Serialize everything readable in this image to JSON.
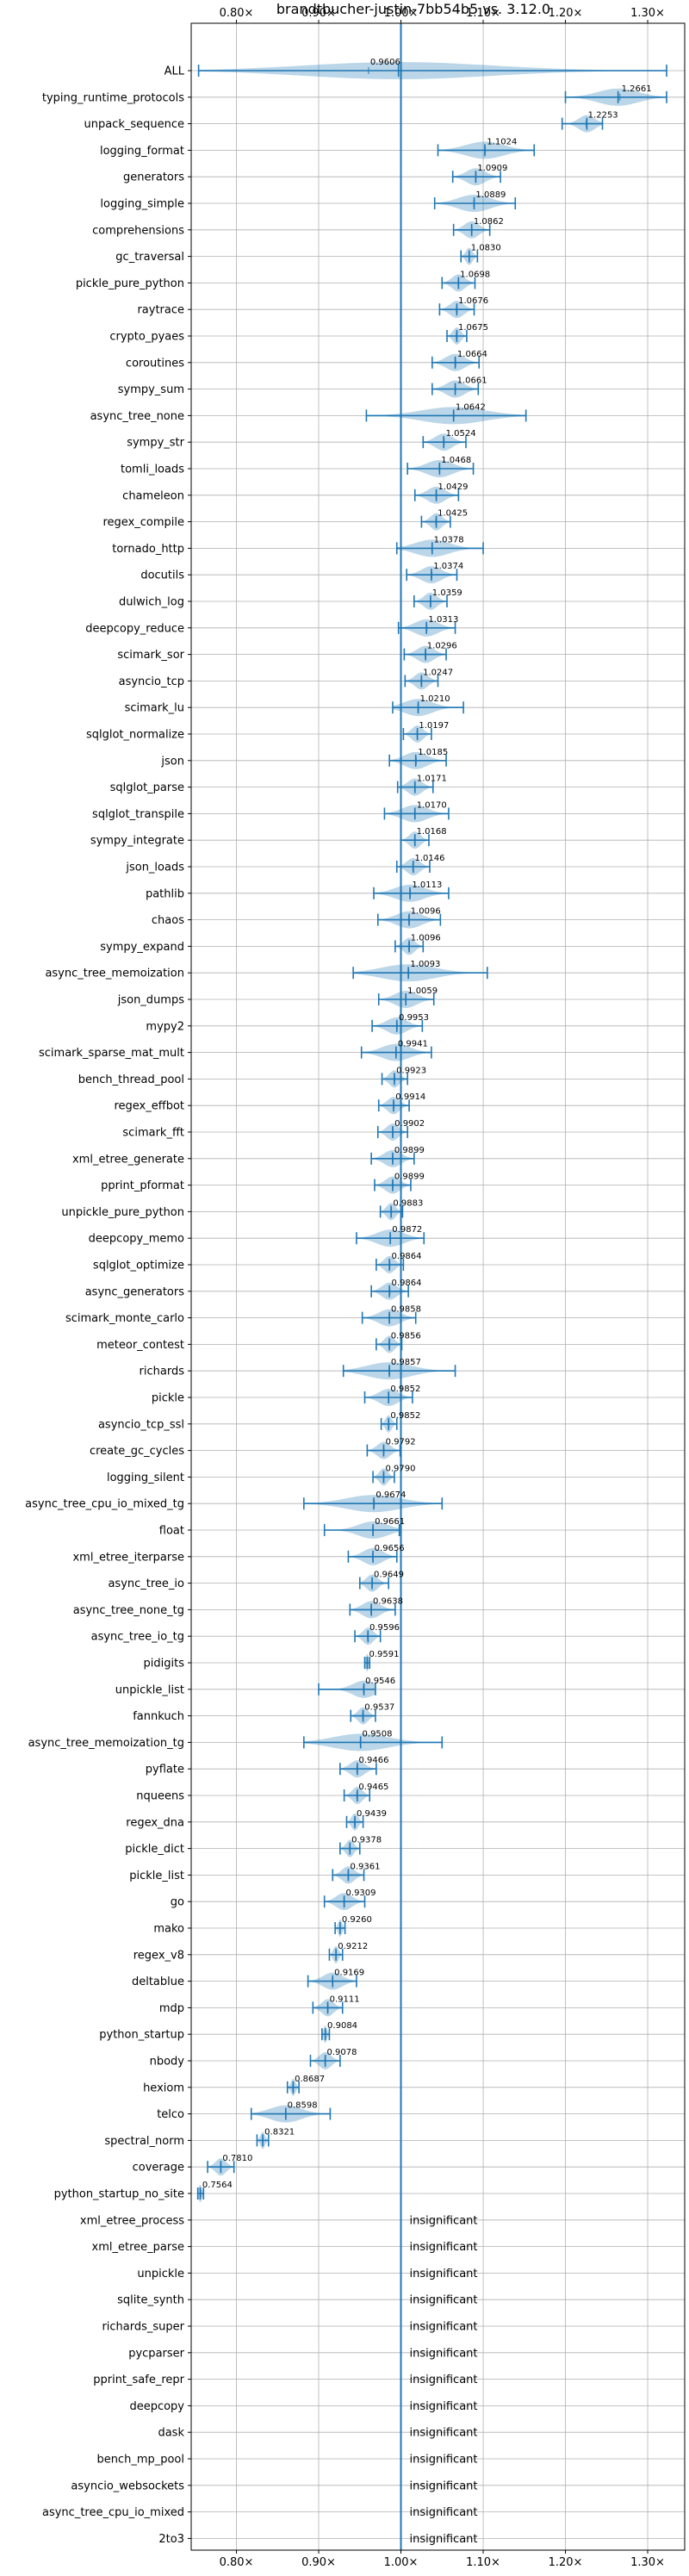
{
  "chart_data": {
    "type": "violin",
    "title": "brandtbucher-justin-7bb54b5 vs. 3.12.0",
    "xlim": [
      0.745,
      1.345
    ],
    "x_ticks": [
      0.8,
      0.9,
      1.0,
      1.1,
      1.2,
      1.3
    ],
    "x_tick_labels": [
      "0.80×",
      "0.90×",
      "1.00×",
      "1.10×",
      "1.20×",
      "1.30×"
    ],
    "x_axis_ticks_top_and_bottom": true,
    "grid": true,
    "reference_line": 1.0,
    "insignificant_label": "insignificant",
    "benchmarks": [
      {
        "name": "ALL",
        "value": "0.9606",
        "mean": 0.9606,
        "median": 0.997,
        "min": 0.754,
        "max": 1.323
      },
      {
        "name": "typing_runtime_protocols",
        "value": "1.2661",
        "mean": 1.2661,
        "median": 1.264,
        "min": 1.2,
        "max": 1.323
      },
      {
        "name": "unpack_sequence",
        "value": "1.2253",
        "mean": 1.2253,
        "median": 1.226,
        "min": 1.196,
        "max": 1.245
      },
      {
        "name": "logging_format",
        "value": "1.1024",
        "mean": 1.1024,
        "median": 1.102,
        "min": 1.045,
        "max": 1.162
      },
      {
        "name": "generators",
        "value": "1.0909",
        "mean": 1.0909,
        "median": 1.091,
        "min": 1.063,
        "max": 1.121
      },
      {
        "name": "logging_simple",
        "value": "1.0889",
        "mean": 1.0889,
        "median": 1.089,
        "min": 1.041,
        "max": 1.139
      },
      {
        "name": "comprehensions",
        "value": "1.0862",
        "mean": 1.0862,
        "median": 1.086,
        "min": 1.064,
        "max": 1.108
      },
      {
        "name": "gc_traversal",
        "value": "1.0830",
        "mean": 1.083,
        "median": 1.083,
        "min": 1.073,
        "max": 1.093
      },
      {
        "name": "pickle_pure_python",
        "value": "1.0698",
        "mean": 1.0698,
        "median": 1.07,
        "min": 1.05,
        "max": 1.09
      },
      {
        "name": "raytrace",
        "value": "1.0676",
        "mean": 1.0676,
        "median": 1.068,
        "min": 1.047,
        "max": 1.089
      },
      {
        "name": "crypto_pyaes",
        "value": "1.0675",
        "mean": 1.0675,
        "median": 1.068,
        "min": 1.056,
        "max": 1.08
      },
      {
        "name": "coroutines",
        "value": "1.0664",
        "mean": 1.0664,
        "median": 1.066,
        "min": 1.038,
        "max": 1.095
      },
      {
        "name": "sympy_sum",
        "value": "1.0661",
        "mean": 1.0661,
        "median": 1.066,
        "min": 1.038,
        "max": 1.094
      },
      {
        "name": "async_tree_none",
        "value": "1.0642",
        "mean": 1.0642,
        "median": 1.064,
        "min": 0.958,
        "max": 1.152
      },
      {
        "name": "sympy_str",
        "value": "1.0524",
        "mean": 1.0524,
        "median": 1.052,
        "min": 1.027,
        "max": 1.079
      },
      {
        "name": "tomli_loads",
        "value": "1.0468",
        "mean": 1.0468,
        "median": 1.047,
        "min": 1.008,
        "max": 1.088
      },
      {
        "name": "chameleon",
        "value": "1.0429",
        "mean": 1.0429,
        "median": 1.043,
        "min": 1.017,
        "max": 1.07
      },
      {
        "name": "regex_compile",
        "value": "1.0425",
        "mean": 1.0425,
        "median": 1.043,
        "min": 1.025,
        "max": 1.06
      },
      {
        "name": "tornado_http",
        "value": "1.0378",
        "mean": 1.0378,
        "median": 1.038,
        "min": 0.995,
        "max": 1.1
      },
      {
        "name": "docutils",
        "value": "1.0374",
        "mean": 1.0374,
        "median": 1.037,
        "min": 1.007,
        "max": 1.068
      },
      {
        "name": "dulwich_log",
        "value": "1.0359",
        "mean": 1.0359,
        "median": 1.036,
        "min": 1.016,
        "max": 1.056
      },
      {
        "name": "deepcopy_reduce",
        "value": "1.0313",
        "mean": 1.0313,
        "median": 1.031,
        "min": 0.997,
        "max": 1.066
      },
      {
        "name": "scimark_sor",
        "value": "1.0296",
        "mean": 1.0296,
        "median": 1.03,
        "min": 1.004,
        "max": 1.055
      },
      {
        "name": "asyncio_tcp",
        "value": "1.0247",
        "mean": 1.0247,
        "median": 1.025,
        "min": 1.005,
        "max": 1.045
      },
      {
        "name": "scimark_lu",
        "value": "1.0210",
        "mean": 1.021,
        "median": 1.021,
        "min": 0.99,
        "max": 1.076
      },
      {
        "name": "sqlglot_normalize",
        "value": "1.0197",
        "mean": 1.0197,
        "median": 1.02,
        "min": 1.003,
        "max": 1.037
      },
      {
        "name": "json",
        "value": "1.0185",
        "mean": 1.0185,
        "median": 1.018,
        "min": 0.986,
        "max": 1.055
      },
      {
        "name": "sqlglot_parse",
        "value": "1.0171",
        "mean": 1.0171,
        "median": 1.017,
        "min": 0.996,
        "max": 1.039
      },
      {
        "name": "sqlglot_transpile",
        "value": "1.0170",
        "mean": 1.017,
        "median": 1.017,
        "min": 0.98,
        "max": 1.058
      },
      {
        "name": "sympy_integrate",
        "value": "1.0168",
        "mean": 1.0168,
        "median": 1.017,
        "min": 1.0,
        "max": 1.034
      },
      {
        "name": "json_loads",
        "value": "1.0146",
        "mean": 1.0146,
        "median": 1.015,
        "min": 0.995,
        "max": 1.035
      },
      {
        "name": "pathlib",
        "value": "1.0113",
        "mean": 1.0113,
        "median": 1.011,
        "min": 0.967,
        "max": 1.058
      },
      {
        "name": "chaos",
        "value": "1.0096",
        "mean": 1.0096,
        "median": 1.01,
        "min": 0.972,
        "max": 1.048
      },
      {
        "name": "sympy_expand",
        "value": "1.0096",
        "mean": 1.0096,
        "median": 1.01,
        "min": 0.993,
        "max": 1.027
      },
      {
        "name": "async_tree_memoization",
        "value": "1.0093",
        "mean": 1.0093,
        "median": 1.009,
        "min": 0.942,
        "max": 1.105
      },
      {
        "name": "json_dumps",
        "value": "1.0059",
        "mean": 1.0059,
        "median": 1.006,
        "min": 0.973,
        "max": 1.04
      },
      {
        "name": "mypy2",
        "value": "0.9953",
        "mean": 0.9953,
        "median": 0.995,
        "min": 0.965,
        "max": 1.026
      },
      {
        "name": "scimark_sparse_mat_mult",
        "value": "0.9941",
        "mean": 0.9941,
        "median": 0.994,
        "min": 0.952,
        "max": 1.037
      },
      {
        "name": "bench_thread_pool",
        "value": "0.9923",
        "mean": 0.9923,
        "median": 0.992,
        "min": 0.977,
        "max": 1.008
      },
      {
        "name": "regex_effbot",
        "value": "0.9914",
        "mean": 0.9914,
        "median": 0.991,
        "min": 0.973,
        "max": 1.01
      },
      {
        "name": "scimark_fft",
        "value": "0.9902",
        "mean": 0.9902,
        "median": 0.99,
        "min": 0.972,
        "max": 1.008
      },
      {
        "name": "xml_etree_generate",
        "value": "0.9899",
        "mean": 0.9899,
        "median": 0.99,
        "min": 0.964,
        "max": 1.016
      },
      {
        "name": "pprint_pformat",
        "value": "0.9899",
        "mean": 0.9899,
        "median": 0.99,
        "min": 0.968,
        "max": 1.012
      },
      {
        "name": "unpickle_pure_python",
        "value": "0.9883",
        "mean": 0.9883,
        "median": 0.988,
        "min": 0.975,
        "max": 1.002
      },
      {
        "name": "deepcopy_memo",
        "value": "0.9872",
        "mean": 0.9872,
        "median": 0.987,
        "min": 0.946,
        "max": 1.028
      },
      {
        "name": "sqlglot_optimize",
        "value": "0.9864",
        "mean": 0.9864,
        "median": 0.986,
        "min": 0.97,
        "max": 1.003
      },
      {
        "name": "async_generators",
        "value": "0.9864",
        "mean": 0.9864,
        "median": 0.986,
        "min": 0.964,
        "max": 1.009
      },
      {
        "name": "scimark_monte_carlo",
        "value": "0.9858",
        "mean": 0.9858,
        "median": 0.986,
        "min": 0.953,
        "max": 1.018
      },
      {
        "name": "meteor_contest",
        "value": "0.9856",
        "mean": 0.9856,
        "median": 0.986,
        "min": 0.97,
        "max": 1.001
      },
      {
        "name": "richards",
        "value": "0.9857",
        "mean": 0.9857,
        "median": 0.986,
        "min": 0.93,
        "max": 1.066
      },
      {
        "name": "pickle",
        "value": "0.9852",
        "mean": 0.9852,
        "median": 0.985,
        "min": 0.956,
        "max": 1.014
      },
      {
        "name": "asyncio_tcp_ssl",
        "value": "0.9852",
        "mean": 0.9852,
        "median": 0.985,
        "min": 0.976,
        "max": 0.995
      },
      {
        "name": "create_gc_cycles",
        "value": "0.9792",
        "mean": 0.9792,
        "median": 0.979,
        "min": 0.959,
        "max": 0.999
      },
      {
        "name": "logging_silent",
        "value": "0.9790",
        "mean": 0.979,
        "median": 0.979,
        "min": 0.966,
        "max": 0.992
      },
      {
        "name": "async_tree_cpu_io_mixed_tg",
        "value": "0.9674",
        "mean": 0.9674,
        "median": 0.967,
        "min": 0.882,
        "max": 1.05
      },
      {
        "name": "float",
        "value": "0.9661",
        "mean": 0.9661,
        "median": 0.966,
        "min": 0.907,
        "max": 0.998
      },
      {
        "name": "xml_etree_iterparse",
        "value": "0.9656",
        "mean": 0.9656,
        "median": 0.966,
        "min": 0.936,
        "max": 0.995
      },
      {
        "name": "async_tree_io",
        "value": "0.9649",
        "mean": 0.9649,
        "median": 0.965,
        "min": 0.95,
        "max": 0.985
      },
      {
        "name": "async_tree_none_tg",
        "value": "0.9638",
        "mean": 0.9638,
        "median": 0.964,
        "min": 0.938,
        "max": 0.993
      },
      {
        "name": "async_tree_io_tg",
        "value": "0.9596",
        "mean": 0.9596,
        "median": 0.96,
        "min": 0.944,
        "max": 0.975
      },
      {
        "name": "pidigits",
        "value": "0.9591",
        "mean": 0.9591,
        "median": 0.959,
        "min": 0.956,
        "max": 0.962
      },
      {
        "name": "unpickle_list",
        "value": "0.9546",
        "mean": 0.9546,
        "median": 0.955,
        "min": 0.9,
        "max": 0.969
      },
      {
        "name": "fannkuch",
        "value": "0.9537",
        "mean": 0.9537,
        "median": 0.954,
        "min": 0.939,
        "max": 0.969
      },
      {
        "name": "async_tree_memoization_tg",
        "value": "0.9508",
        "mean": 0.9508,
        "median": 0.951,
        "min": 0.882,
        "max": 1.05
      },
      {
        "name": "pyflate",
        "value": "0.9466",
        "mean": 0.9466,
        "median": 0.947,
        "min": 0.926,
        "max": 0.97
      },
      {
        "name": "nqueens",
        "value": "0.9465",
        "mean": 0.9465,
        "median": 0.947,
        "min": 0.931,
        "max": 0.962
      },
      {
        "name": "regex_dna",
        "value": "0.9439",
        "mean": 0.9439,
        "median": 0.944,
        "min": 0.934,
        "max": 0.954
      },
      {
        "name": "pickle_dict",
        "value": "0.9378",
        "mean": 0.9378,
        "median": 0.938,
        "min": 0.926,
        "max": 0.95
      },
      {
        "name": "pickle_list",
        "value": "0.9361",
        "mean": 0.9361,
        "median": 0.936,
        "min": 0.917,
        "max": 0.955
      },
      {
        "name": "go",
        "value": "0.9309",
        "mean": 0.9309,
        "median": 0.931,
        "min": 0.907,
        "max": 0.956
      },
      {
        "name": "mako",
        "value": "0.9260",
        "mean": 0.926,
        "median": 0.926,
        "min": 0.92,
        "max": 0.932
      },
      {
        "name": "regex_v8",
        "value": "0.9212",
        "mean": 0.9212,
        "median": 0.921,
        "min": 0.913,
        "max": 0.929
      },
      {
        "name": "deltablue",
        "value": "0.9169",
        "mean": 0.9169,
        "median": 0.917,
        "min": 0.887,
        "max": 0.946
      },
      {
        "name": "mdp",
        "value": "0.9111",
        "mean": 0.9111,
        "median": 0.911,
        "min": 0.893,
        "max": 0.929
      },
      {
        "name": "python_startup",
        "value": "0.9084",
        "mean": 0.9084,
        "median": 0.908,
        "min": 0.904,
        "max": 0.913
      },
      {
        "name": "nbody",
        "value": "0.9078",
        "mean": 0.9078,
        "median": 0.908,
        "min": 0.89,
        "max": 0.926
      },
      {
        "name": "hexiom",
        "value": "0.8687",
        "mean": 0.8687,
        "median": 0.869,
        "min": 0.862,
        "max": 0.876
      },
      {
        "name": "telco",
        "value": "0.8598",
        "mean": 0.8598,
        "median": 0.86,
        "min": 0.818,
        "max": 0.914
      },
      {
        "name": "spectral_norm",
        "value": "0.8321",
        "mean": 0.8321,
        "median": 0.832,
        "min": 0.825,
        "max": 0.839
      },
      {
        "name": "coverage",
        "value": "0.7810",
        "mean": 0.781,
        "median": 0.781,
        "min": 0.765,
        "max": 0.797
      },
      {
        "name": "python_startup_no_site",
        "value": "0.7564",
        "mean": 0.7564,
        "median": 0.756,
        "min": 0.753,
        "max": 0.76
      },
      {
        "name": "xml_etree_process",
        "value": null
      },
      {
        "name": "xml_etree_parse",
        "value": null
      },
      {
        "name": "unpickle",
        "value": null
      },
      {
        "name": "sqlite_synth",
        "value": null
      },
      {
        "name": "richards_super",
        "value": null
      },
      {
        "name": "pycparser",
        "value": null
      },
      {
        "name": "pprint_safe_repr",
        "value": null
      },
      {
        "name": "deepcopy",
        "value": null
      },
      {
        "name": "dask",
        "value": null
      },
      {
        "name": "bench_mp_pool",
        "value": null
      },
      {
        "name": "asyncio_websockets",
        "value": null
      },
      {
        "name": "async_tree_cpu_io_mixed",
        "value": null
      },
      {
        "name": "2to3",
        "value": null
      }
    ]
  },
  "colors": {
    "accent": "#1f77b4",
    "grid": "#b0b0b0",
    "frame": "#000000"
  }
}
